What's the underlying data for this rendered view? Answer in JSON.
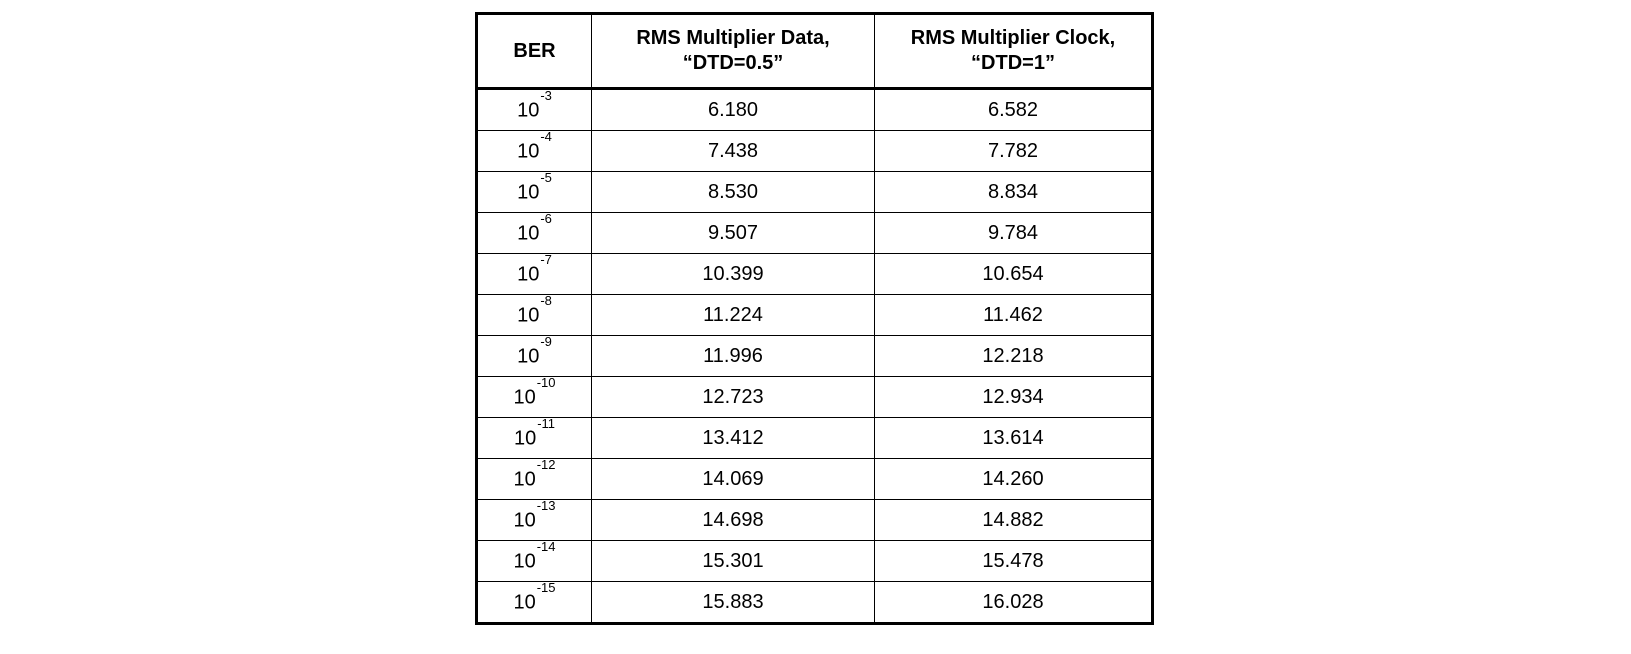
{
  "table": {
    "headers": {
      "ber": "BER",
      "data_line1": "RMS Multiplier Data,",
      "data_line2": "“DTD=0.5”",
      "clock_line1": "RMS Multiplier Clock,",
      "clock_line2": "“DTD=1”"
    },
    "rows": [
      {
        "base": "10",
        "exp": "-3",
        "data": "6.180",
        "clock": "6.582"
      },
      {
        "base": "10",
        "exp": "-4",
        "data": "7.438",
        "clock": "7.782"
      },
      {
        "base": "10",
        "exp": "-5",
        "data": "8.530",
        "clock": "8.834"
      },
      {
        "base": "10",
        "exp": "-6",
        "data": "9.507",
        "clock": "9.784"
      },
      {
        "base": "10",
        "exp": "-7",
        "data": "10.399",
        "clock": "10.654"
      },
      {
        "base": "10",
        "exp": "-8",
        "data": "11.224",
        "clock": "11.462"
      },
      {
        "base": "10",
        "exp": "-9",
        "data": "11.996",
        "clock": "12.218"
      },
      {
        "base": "10",
        "exp": "-10",
        "data": "12.723",
        "clock": "12.934"
      },
      {
        "base": "10",
        "exp": "-11",
        "data": "13.412",
        "clock": "13.614"
      },
      {
        "base": "10",
        "exp": "-12",
        "data": "14.069",
        "clock": "14.260"
      },
      {
        "base": "10",
        "exp": "-13",
        "data": "14.698",
        "clock": "14.882"
      },
      {
        "base": "10",
        "exp": "-14",
        "data": "15.301",
        "clock": "15.478"
      },
      {
        "base": "10",
        "exp": "-15",
        "data": "15.883",
        "clock": "16.028"
      }
    ]
  }
}
